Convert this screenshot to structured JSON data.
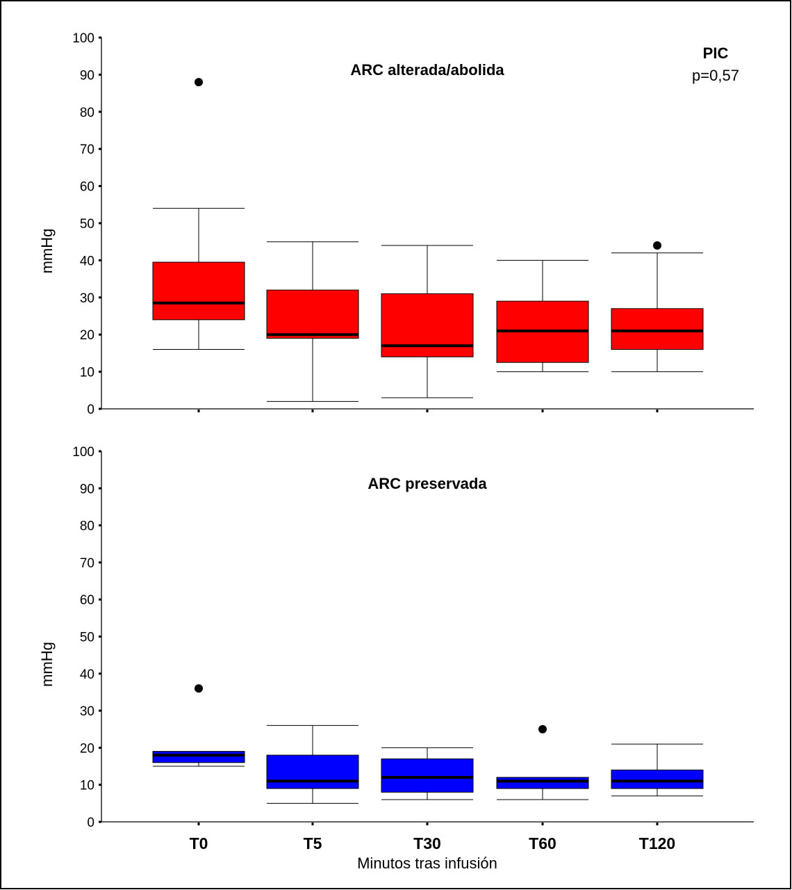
{
  "chart_data": {
    "type": "boxplot",
    "annotation": {
      "title": "PIC",
      "pvalue": "p=0,57"
    },
    "xlabel": "Minutos tras infusión",
    "categories": [
      "T0",
      "T5",
      "T30",
      "T60",
      "T120"
    ],
    "panels": [
      {
        "title": "ARC alterada/abolida",
        "ylabel": "mmHg",
        "ylim": [
          0,
          100
        ],
        "yticks": [
          0,
          10,
          20,
          30,
          40,
          50,
          60,
          70,
          80,
          90,
          100
        ],
        "box_color": "#ff0000",
        "boxes": [
          {
            "category": "T0",
            "whisker_low": 16,
            "q1": 24,
            "median": 28.5,
            "q3": 39.5,
            "whisker_high": 54,
            "outliers": [
              88
            ]
          },
          {
            "category": "T5",
            "whisker_low": 2,
            "q1": 19,
            "median": 20,
            "q3": 32,
            "whisker_high": 45,
            "outliers": []
          },
          {
            "category": "T30",
            "whisker_low": 3,
            "q1": 14,
            "median": 17,
            "q3": 31,
            "whisker_high": 44,
            "outliers": []
          },
          {
            "category": "T60",
            "whisker_low": 10,
            "q1": 12.5,
            "median": 21,
            "q3": 29,
            "whisker_high": 40,
            "outliers": []
          },
          {
            "category": "T120",
            "whisker_low": 10,
            "q1": 16,
            "median": 21,
            "q3": 27,
            "whisker_high": 42,
            "outliers": [
              44
            ]
          }
        ]
      },
      {
        "title": "ARC preservada",
        "ylabel": "mmHg",
        "ylim": [
          0,
          100
        ],
        "yticks": [
          0,
          10,
          20,
          30,
          40,
          50,
          60,
          70,
          80,
          90,
          100
        ],
        "box_color": "#0000ff",
        "boxes": [
          {
            "category": "T0",
            "whisker_low": 15,
            "q1": 16,
            "median": 18,
            "q3": 19,
            "whisker_high": 19,
            "outliers": [
              36
            ]
          },
          {
            "category": "T5",
            "whisker_low": 5,
            "q1": 9,
            "median": 11,
            "q3": 18,
            "whisker_high": 26,
            "outliers": []
          },
          {
            "category": "T30",
            "whisker_low": 6,
            "q1": 8,
            "median": 12,
            "q3": 17,
            "whisker_high": 20,
            "outliers": []
          },
          {
            "category": "T60",
            "whisker_low": 6,
            "q1": 9,
            "median": 11,
            "q3": 12,
            "whisker_high": 12,
            "outliers": [
              25
            ]
          },
          {
            "category": "T120",
            "whisker_low": 7,
            "q1": 9,
            "median": 11,
            "q3": 14,
            "whisker_high": 21,
            "outliers": []
          }
        ]
      }
    ]
  }
}
